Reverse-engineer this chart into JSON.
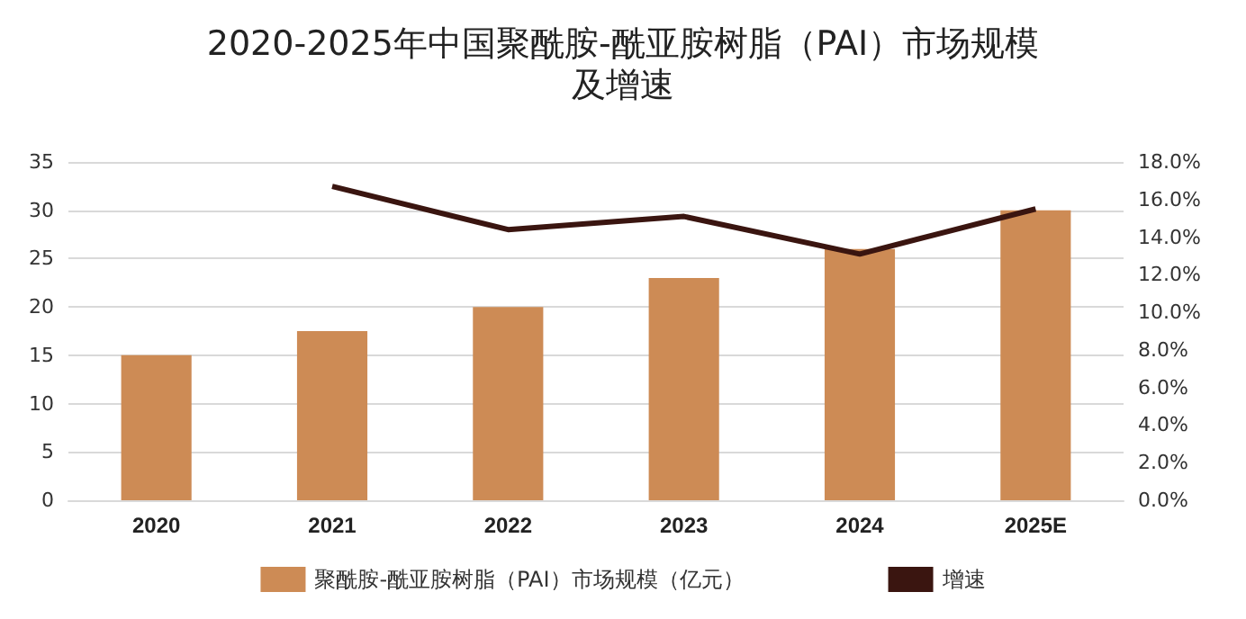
{
  "chart_data": {
    "type": "bar",
    "title": "2020-2025年中国聚酰胺-酰亚胺树脂（PAI）市场规模",
    "subtitle": "及增速",
    "categories": [
      "2020",
      "2021",
      "2022",
      "2023",
      "2024",
      "2025E"
    ],
    "series": [
      {
        "name": "聚酰胺-酰亚胺树脂（PAI）市场规模（亿元）",
        "color": "#cd8b55",
        "values": [
          15,
          17.5,
          20,
          23,
          26,
          30
        ]
      },
      {
        "name": "增速",
        "type": "line",
        "axis": "y2",
        "color": "#3a1510",
        "values": [
          null,
          16.7,
          14.4,
          15.1,
          13.1,
          15.5
        ]
      }
    ],
    "ylim": [
      0,
      35
    ],
    "yticks": [
      0,
      5,
      10,
      15,
      20,
      25,
      30,
      35
    ],
    "y2lim": [
      0,
      18
    ],
    "y2ticks": [
      {
        "value": 0,
        "label": "0.0%"
      },
      {
        "value": 2,
        "label": "2.0%"
      },
      {
        "value": 4,
        "label": "4.0%"
      },
      {
        "value": 6,
        "label": "6.0%"
      },
      {
        "value": 8,
        "label": "8.0%"
      },
      {
        "value": 10,
        "label": "10.0%"
      },
      {
        "value": 12,
        "label": "12.0%"
      },
      {
        "value": 14,
        "label": "14.0%"
      },
      {
        "value": 16,
        "label": "16.0%"
      },
      {
        "value": 18,
        "label": "18.0%"
      }
    ],
    "grid": "y",
    "legend": "bottom",
    "marker": "none",
    "line_style": "solid"
  }
}
